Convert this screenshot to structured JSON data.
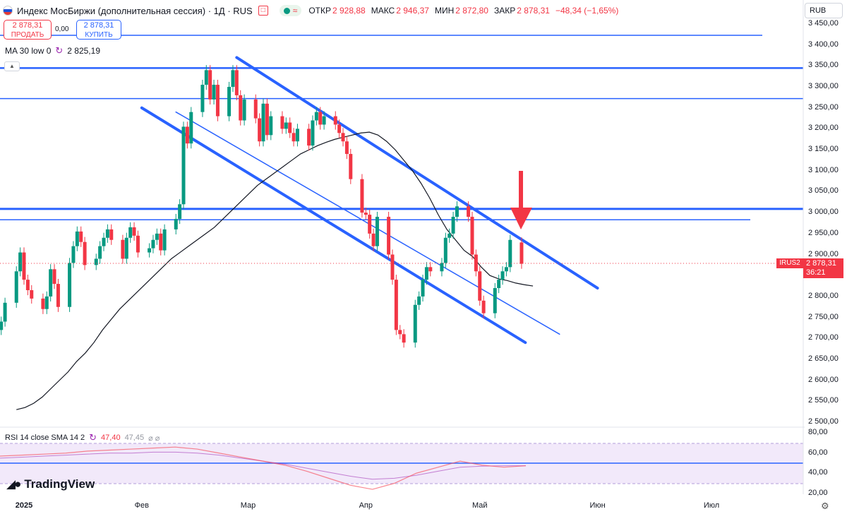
{
  "header": {
    "title": "Индекс МосБиржи (дополнительная сессия) · 1Д · RUS",
    "pill_symbol": "≈",
    "open_label": "ОТКР",
    "open": "2 928,88",
    "high_label": "МАКС",
    "high": "2 946,37",
    "low_label": "МИН",
    "low": "2 872,80",
    "close_label": "ЗАКР",
    "close": "2 878,31",
    "change": "−48,34 (−1,65%)"
  },
  "trade": {
    "sell_price": "2 878,31",
    "sell_label": "ПРОДАТЬ",
    "spread": "0,00",
    "buy_price": "2 878,31",
    "buy_label": "КУПИТЬ"
  },
  "ma_indicator": {
    "label": "MA 30 low 0",
    "value": "2 825,19"
  },
  "rsi_indicator": {
    "label": "RSI 14 close SMA 14 2",
    "rsi_value": "47,40",
    "sma_value": "47,45",
    "extra": "⌀ ⌀"
  },
  "currency": "RUB",
  "price_tag": {
    "symbol": "IRUS2",
    "price": "2 878,31",
    "countdown": "36:21"
  },
  "branding": "TradingView",
  "colors": {
    "up": "#089981",
    "down": "#f23645",
    "trend": "#2962ff",
    "ma": "#131722",
    "rsi": "#f7525f",
    "rsi_sma": "#9c27b0"
  },
  "chart_data": {
    "type": "candlestick",
    "title": "Индекс МосБиржи (дополнительная сессия)",
    "timeframe": "1Д",
    "ylim": [
      2500,
      3450
    ],
    "y_ticks": [
      "3 450,00",
      "3 400,00",
      "3 350,00",
      "3 300,00",
      "3 250,00",
      "3 200,00",
      "3 150,00",
      "3 100,00",
      "3 050,00",
      "3 000,00",
      "2 950,00",
      "2 900,00",
      "2 850,00",
      "2 800,00",
      "2 750,00",
      "2 700,00",
      "2 650,00",
      "2 600,00",
      "2 550,00",
      "2 500,00"
    ],
    "x_ticks": [
      "2025",
      "Фев",
      "Мар",
      "Апр",
      "Май",
      "Июн",
      "Июл"
    ],
    "rsi_ticks": [
      "80,00",
      "60,00",
      "40,00",
      "20,00"
    ],
    "candles_close": [
      2740,
      2785,
      2860,
      2905,
      2840,
      2815,
      2795,
      2770,
      2800,
      2865,
      2830,
      2775,
      2880,
      2920,
      2955,
      2930,
      2875,
      2890,
      2920,
      2940,
      2960,
      2935,
      2890,
      2940,
      2965,
      2945,
      2905,
      2915,
      2935,
      2950,
      2910,
      2960,
      2985,
      3020,
      3205,
      3165,
      3240,
      3305,
      3340,
      3270,
      3305,
      3230,
      3300,
      3340,
      3280,
      3220,
      3270,
      3225,
      3170,
      3260,
      3185,
      3230,
      3200,
      3215,
      3190,
      3170,
      3200,
      3160,
      3220,
      3240,
      3210,
      3230,
      3210,
      3190,
      3170,
      3140,
      3080,
      3000,
      2995,
      2950,
      2920,
      2990,
      2900,
      2840,
      2720,
      2710,
      2690,
      2780,
      2800,
      2840,
      2870,
      2860,
      2880,
      2940,
      2950,
      2990,
      3015,
      2990,
      2900,
      2860,
      2790,
      2760,
      2820,
      2840,
      2860,
      2870,
      2935,
      2878
    ],
    "ma30_low": [
      2530,
      2535,
      2545,
      2560,
      2580,
      2600,
      2620,
      2645,
      2665,
      2690,
      2720,
      2745,
      2770,
      2790,
      2810,
      2830,
      2850,
      2870,
      2890,
      2905,
      2920,
      2935,
      2950,
      2965,
      2985,
      3005,
      3025,
      3045,
      3065,
      3080,
      3095,
      3110,
      3125,
      3140,
      3150,
      3160,
      3168,
      3175,
      3180,
      3185,
      3190,
      3192,
      3185,
      3170,
      3150,
      3125,
      3100,
      3070,
      3035,
      2995,
      2960,
      2935,
      2910,
      2895,
      2870,
      2850,
      2842,
      2838,
      2832,
      2828,
      2825
    ],
    "levels": [
      3423,
      3345,
      3272,
      3009,
      2983
    ],
    "channel_upper": {
      "from": [
        "2025-02-26",
        3370
      ],
      "to": [
        "2025-06-01",
        2820
      ]
    },
    "channel_lower": {
      "from": [
        "2025-02-01",
        3250
      ],
      "to": [
        "2025-05-13",
        2690
      ]
    },
    "channel_mid": {
      "from": [
        "2025-02-10",
        3240
      ],
      "to": [
        "2025-05-22",
        2710
      ]
    },
    "last_close": "2 878,31",
    "rsi": {
      "ylim": [
        20,
        80
      ],
      "bands": [
        70,
        30
      ],
      "midline": 50,
      "value": 47.4,
      "sma": 47.45
    }
  }
}
